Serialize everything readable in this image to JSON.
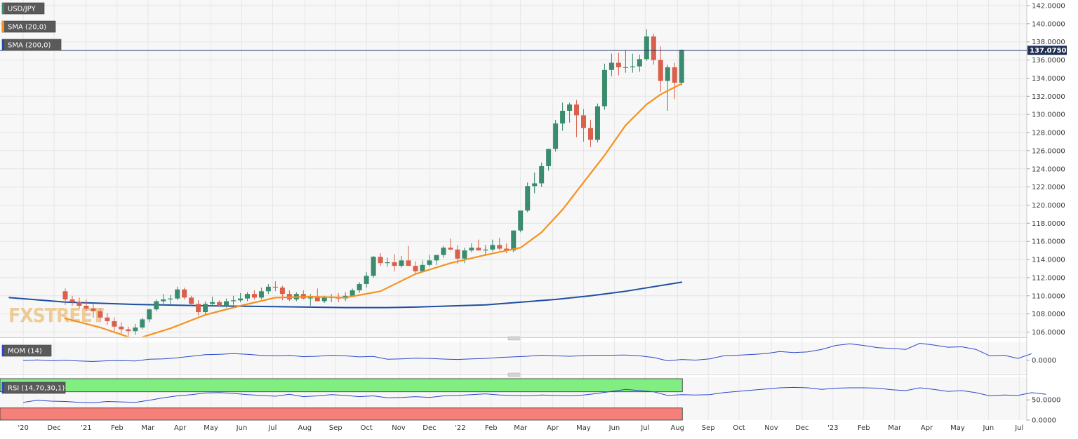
{
  "chart_data": {
    "type": "candlestick",
    "symbol": "USD/JPY",
    "legend": [
      {
        "label": "USD/JPY",
        "color": "#3b8c6e"
      },
      {
        "label": "SMA (20,0)",
        "color": "#f5921e"
      },
      {
        "label": "SMA (200,0)",
        "color": "#1d4fa0"
      }
    ],
    "last_price": "137.0750",
    "last_value": 137.075,
    "price_axis": {
      "ticks": [
        "106.0000",
        "108.0000",
        "110.0000",
        "112.0000",
        "114.0000",
        "116.0000",
        "118.0000",
        "120.0000",
        "122.0000",
        "124.0000",
        "126.0000",
        "128.0000",
        "130.0000",
        "132.0000",
        "134.0000",
        "136.0000",
        "138.0000",
        "140.0000",
        "142.0000"
      ],
      "ylim": [
        105.5,
        142.5
      ]
    },
    "x_axis": {
      "labels": [
        "'20",
        "Dec",
        "'21",
        "Feb",
        "Mar",
        "Apr",
        "May",
        "Jun",
        "Jul",
        "Aug",
        "Sep",
        "Oct",
        "Nov",
        "Dec",
        "'22",
        "Feb",
        "Mar",
        "Apr",
        "May",
        "Jun",
        "Jul",
        "Aug",
        "Sep",
        "Oct",
        "Nov",
        "Dec",
        "'23",
        "Feb",
        "Mar",
        "Apr",
        "May",
        "Jun",
        "Jul"
      ],
      "label_week_index": [
        -6,
        -1.6,
        3,
        7.4,
        11.8,
        16.4,
        20.8,
        25.2,
        29.6,
        34.2,
        38.6,
        43,
        47.6,
        52,
        56.4,
        60.8,
        65,
        69.6,
        74,
        78.4,
        82.8,
        87.4,
        91.8,
        96.2,
        100.8,
        105.2,
        109.6,
        114,
        118.4,
        123,
        127.4,
        131.8,
        136.2
      ]
    },
    "weekly_candles_ohlc": [
      [
        110.5,
        110.8,
        109.0,
        109.6
      ],
      [
        109.6,
        110.0,
        108.9,
        109.3
      ],
      [
        109.3,
        109.8,
        108.6,
        108.9
      ],
      [
        108.9,
        109.6,
        108.3,
        108.6
      ],
      [
        108.6,
        109.1,
        107.6,
        108.3
      ],
      [
        108.3,
        108.6,
        107.1,
        107.6
      ],
      [
        107.6,
        108.1,
        106.8,
        107.2
      ],
      [
        107.2,
        107.6,
        106.1,
        106.6
      ],
      [
        106.6,
        107.1,
        105.8,
        106.3
      ],
      [
        106.3,
        106.6,
        105.6,
        106.1
      ],
      [
        106.1,
        106.9,
        105.7,
        106.5
      ],
      [
        106.5,
        107.6,
        106.3,
        107.4
      ],
      [
        107.4,
        108.6,
        107.1,
        108.5
      ],
      [
        108.5,
        109.6,
        108.3,
        109.4
      ],
      [
        109.4,
        110.2,
        108.9,
        109.6
      ],
      [
        109.6,
        110.1,
        109.0,
        109.7
      ],
      [
        109.7,
        111.0,
        109.5,
        110.7
      ],
      [
        110.7,
        110.9,
        109.6,
        109.8
      ],
      [
        109.8,
        110.0,
        108.9,
        109.1
      ],
      [
        109.1,
        109.5,
        107.8,
        108.2
      ],
      [
        108.2,
        109.4,
        107.9,
        109.1
      ],
      [
        109.1,
        109.9,
        108.8,
        109.3
      ],
      [
        109.3,
        109.5,
        108.8,
        108.9
      ],
      [
        108.9,
        109.7,
        108.7,
        109.4
      ],
      [
        109.4,
        110.0,
        109.0,
        109.5
      ],
      [
        109.5,
        110.3,
        109.3,
        109.7
      ],
      [
        109.7,
        110.4,
        109.4,
        110.2
      ],
      [
        110.2,
        110.6,
        109.6,
        109.8
      ],
      [
        109.8,
        110.9,
        109.6,
        110.5
      ],
      [
        110.5,
        111.3,
        110.2,
        111.0
      ],
      [
        111.0,
        111.6,
        110.5,
        110.9
      ],
      [
        110.9,
        111.1,
        109.5,
        110.2
      ],
      [
        110.2,
        110.6,
        109.4,
        109.6
      ],
      [
        109.6,
        110.4,
        109.4,
        110.2
      ],
      [
        110.2,
        110.6,
        109.6,
        109.7
      ],
      [
        109.7,
        110.2,
        108.9,
        109.8
      ],
      [
        109.8,
        110.8,
        109.5,
        109.4
      ],
      [
        109.4,
        110.0,
        109.2,
        109.8
      ],
      [
        109.8,
        110.2,
        109.3,
        109.9
      ],
      [
        109.9,
        110.3,
        109.3,
        109.7
      ],
      [
        109.7,
        110.4,
        109.4,
        110.0
      ],
      [
        110.0,
        110.8,
        109.9,
        110.6
      ],
      [
        110.6,
        111.5,
        110.3,
        111.3
      ],
      [
        111.3,
        112.6,
        110.9,
        112.2
      ],
      [
        112.2,
        114.4,
        112.0,
        114.3
      ],
      [
        114.3,
        114.7,
        113.3,
        113.6
      ],
      [
        113.6,
        114.2,
        113.2,
        113.7
      ],
      [
        113.7,
        114.6,
        112.7,
        113.3
      ],
      [
        113.3,
        114.4,
        113.1,
        113.9
      ],
      [
        113.9,
        115.5,
        113.8,
        113.3
      ],
      [
        113.3,
        113.8,
        112.5,
        112.7
      ],
      [
        112.7,
        113.9,
        112.6,
        113.4
      ],
      [
        113.4,
        114.5,
        113.2,
        113.9
      ],
      [
        113.9,
        114.3,
        113.4,
        114.5
      ],
      [
        114.5,
        115.5,
        114.2,
        115.3
      ],
      [
        115.3,
        116.3,
        115.0,
        115.1
      ],
      [
        115.1,
        115.6,
        113.5,
        114.1
      ],
      [
        114.1,
        115.3,
        113.6,
        115.0
      ],
      [
        115.0,
        115.8,
        114.8,
        115.3
      ],
      [
        115.3,
        116.2,
        115.0,
        115.0
      ],
      [
        115.0,
        115.6,
        114.4,
        115.1
      ],
      [
        115.1,
        116.2,
        114.9,
        115.6
      ],
      [
        115.6,
        116.4,
        115.0,
        115.2
      ],
      [
        115.2,
        115.8,
        114.7,
        115.0
      ],
      [
        115.0,
        117.2,
        114.8,
        117.2
      ],
      [
        117.2,
        119.3,
        117.0,
        119.4
      ],
      [
        119.4,
        122.5,
        119.2,
        122.1
      ],
      [
        122.1,
        123.6,
        121.3,
        122.4
      ],
      [
        122.4,
        124.7,
        122.0,
        124.3
      ],
      [
        124.3,
        126.2,
        123.8,
        126.2
      ],
      [
        126.2,
        129.4,
        125.9,
        129.0
      ],
      [
        129.0,
        131.3,
        128.2,
        130.4
      ],
      [
        130.4,
        131.3,
        129.1,
        131.1
      ],
      [
        131.1,
        131.6,
        127.5,
        129.9
      ],
      [
        129.9,
        130.6,
        127.0,
        128.5
      ],
      [
        128.5,
        129.4,
        126.4,
        127.2
      ],
      [
        127.2,
        131.2,
        126.9,
        130.9
      ],
      [
        130.9,
        135.6,
        130.5,
        134.9
      ],
      [
        134.9,
        136.7,
        134.2,
        135.7
      ],
      [
        135.7,
        136.8,
        134.3,
        135.2
      ],
      [
        135.2,
        137.1,
        134.6,
        135.2
      ],
      [
        135.2,
        136.7,
        134.6,
        135.3
      ],
      [
        135.3,
        136.6,
        134.7,
        136.1
      ],
      [
        136.1,
        139.4,
        135.9,
        138.6
      ],
      [
        138.6,
        138.9,
        135.5,
        136.0
      ],
      [
        136.0,
        137.5,
        132.5,
        133.7
      ],
      [
        133.7,
        135.5,
        130.4,
        135.2
      ],
      [
        135.2,
        135.7,
        131.7,
        133.5
      ],
      [
        133.5,
        137.2,
        133.2,
        137.1
      ]
    ],
    "sma_20": [
      [
        0,
        107.5
      ],
      [
        5,
        106.5
      ],
      [
        10,
        105.2
      ],
      [
        15,
        106.4
      ],
      [
        20,
        107.9
      ],
      [
        25,
        108.9
      ],
      [
        30,
        109.8
      ],
      [
        35,
        109.9
      ],
      [
        40,
        109.8
      ],
      [
        45,
        110.5
      ],
      [
        50,
        112.4
      ],
      [
        55,
        113.6
      ],
      [
        60,
        114.5
      ],
      [
        65,
        115.3
      ],
      [
        68,
        117.0
      ],
      [
        71,
        119.5
      ],
      [
        74,
        122.5
      ],
      [
        77,
        125.5
      ],
      [
        80,
        128.8
      ],
      [
        83,
        131.1
      ],
      [
        85,
        132.2
      ],
      [
        87,
        133.0
      ],
      [
        88,
        133.4
      ]
    ],
    "sma_200": [
      [
        -8,
        109.8
      ],
      [
        0,
        109.3
      ],
      [
        10,
        109.05
      ],
      [
        20,
        108.9
      ],
      [
        30,
        108.8
      ],
      [
        40,
        108.7
      ],
      [
        46,
        108.7
      ],
      [
        50,
        108.75
      ],
      [
        60,
        109.0
      ],
      [
        70,
        109.6
      ],
      [
        75,
        110.0
      ],
      [
        80,
        110.5
      ],
      [
        84,
        111.0
      ],
      [
        88,
        111.5
      ]
    ],
    "indicators": [
      {
        "label": "MOM (14)",
        "ticks": [
          "0.0000"
        ],
        "ylim": [
          -6,
          8.3
        ],
        "values": [
          [
            -6,
            -0.2
          ],
          [
            -4,
            0.1
          ],
          [
            -2,
            -0.3
          ],
          [
            0,
            -0.1
          ],
          [
            2,
            -0.4
          ],
          [
            4,
            -0.6
          ],
          [
            6,
            -0.3
          ],
          [
            8,
            -0.2
          ],
          [
            10,
            -0.4
          ],
          [
            12,
            0.4
          ],
          [
            14,
            0.6
          ],
          [
            16,
            1.1
          ],
          [
            18,
            1.8
          ],
          [
            20,
            2.5
          ],
          [
            22,
            2.7
          ],
          [
            24,
            3.0
          ],
          [
            26,
            2.7
          ],
          [
            28,
            2.2
          ],
          [
            30,
            2.0
          ],
          [
            32,
            2.2
          ],
          [
            34,
            1.6
          ],
          [
            36,
            1.8
          ],
          [
            38,
            2.3
          ],
          [
            40,
            2.0
          ],
          [
            42,
            1.5
          ],
          [
            44,
            1.7
          ],
          [
            46,
            0.4
          ],
          [
            48,
            0.6
          ],
          [
            50,
            0.9
          ],
          [
            52,
            0.8
          ],
          [
            54,
            0.5
          ],
          [
            56,
            0.3
          ],
          [
            58,
            0.6
          ],
          [
            60,
            0.8
          ],
          [
            62,
            1.2
          ],
          [
            64,
            1.5
          ],
          [
            66,
            1.8
          ],
          [
            68,
            2.3
          ],
          [
            70,
            2.0
          ],
          [
            72,
            1.8
          ],
          [
            74,
            2.1
          ],
          [
            76,
            2.3
          ],
          [
            78,
            2.3
          ],
          [
            80,
            2.4
          ],
          [
            82,
            2.0
          ],
          [
            84,
            1.2
          ],
          [
            86,
            -0.3
          ],
          [
            88,
            0.3
          ],
          [
            90,
            0.0
          ],
          [
            92,
            0.6
          ],
          [
            94,
            2.0
          ],
          [
            96,
            2.3
          ],
          [
            98,
            2.6
          ],
          [
            100,
            3.0
          ],
          [
            102,
            4.0
          ],
          [
            104,
            3.5
          ],
          [
            106,
            3.8
          ],
          [
            108,
            5.0
          ],
          [
            110,
            6.8
          ],
          [
            112,
            7.6
          ],
          [
            114,
            6.8
          ],
          [
            116,
            5.8
          ],
          [
            118,
            5.4
          ],
          [
            120,
            5.0
          ],
          [
            122,
            7.8
          ],
          [
            124,
            7.0
          ],
          [
            126,
            6.0
          ],
          [
            128,
            6.2
          ],
          [
            130,
            5.0
          ],
          [
            132,
            2.0
          ],
          [
            134,
            2.3
          ],
          [
            136,
            0.8
          ],
          [
            138,
            3.0
          ]
        ]
      },
      {
        "label": "RSI (14,70,30,1)",
        "ticks": [
          "0.0000",
          "50.0000"
        ],
        "ylim": [
          0,
          106
        ],
        "overbought": 70,
        "oversold": 30,
        "overbought_color": "#80ee80",
        "oversold_color": "#f5807a",
        "values": [
          [
            -6,
            44
          ],
          [
            -4,
            49
          ],
          [
            -2,
            47
          ],
          [
            0,
            46
          ],
          [
            2,
            44
          ],
          [
            4,
            43
          ],
          [
            6,
            46
          ],
          [
            8,
            45
          ],
          [
            10,
            44
          ],
          [
            12,
            49
          ],
          [
            14,
            55
          ],
          [
            16,
            60
          ],
          [
            18,
            63
          ],
          [
            20,
            67
          ],
          [
            22,
            68
          ],
          [
            24,
            66
          ],
          [
            26,
            63
          ],
          [
            28,
            61
          ],
          [
            30,
            59
          ],
          [
            32,
            64
          ],
          [
            34,
            58
          ],
          [
            36,
            60
          ],
          [
            38,
            63
          ],
          [
            40,
            61
          ],
          [
            42,
            58
          ],
          [
            44,
            60
          ],
          [
            46,
            55
          ],
          [
            48,
            56
          ],
          [
            50,
            58
          ],
          [
            52,
            56
          ],
          [
            54,
            60
          ],
          [
            56,
            61
          ],
          [
            58,
            63
          ],
          [
            60,
            65
          ],
          [
            62,
            62
          ],
          [
            64,
            61
          ],
          [
            66,
            60
          ],
          [
            68,
            62
          ],
          [
            70,
            61
          ],
          [
            72,
            60
          ],
          [
            74,
            62
          ],
          [
            76,
            66
          ],
          [
            78,
            71
          ],
          [
            80,
            76
          ],
          [
            82,
            73
          ],
          [
            84,
            70
          ],
          [
            86,
            61
          ],
          [
            88,
            63
          ],
          [
            90,
            62
          ],
          [
            92,
            63
          ],
          [
            94,
            68
          ],
          [
            96,
            71
          ],
          [
            98,
            74
          ],
          [
            100,
            77
          ],
          [
            102,
            80
          ],
          [
            104,
            81
          ],
          [
            106,
            80
          ],
          [
            108,
            76
          ],
          [
            110,
            79
          ],
          [
            112,
            80
          ],
          [
            114,
            80
          ],
          [
            116,
            79
          ],
          [
            118,
            75
          ],
          [
            120,
            73
          ],
          [
            122,
            80
          ],
          [
            124,
            76
          ],
          [
            126,
            71
          ],
          [
            128,
            73
          ],
          [
            130,
            68
          ],
          [
            132,
            60
          ],
          [
            134,
            62
          ],
          [
            136,
            61
          ],
          [
            138,
            68
          ],
          [
            140,
            64
          ]
        ]
      }
    ]
  }
}
